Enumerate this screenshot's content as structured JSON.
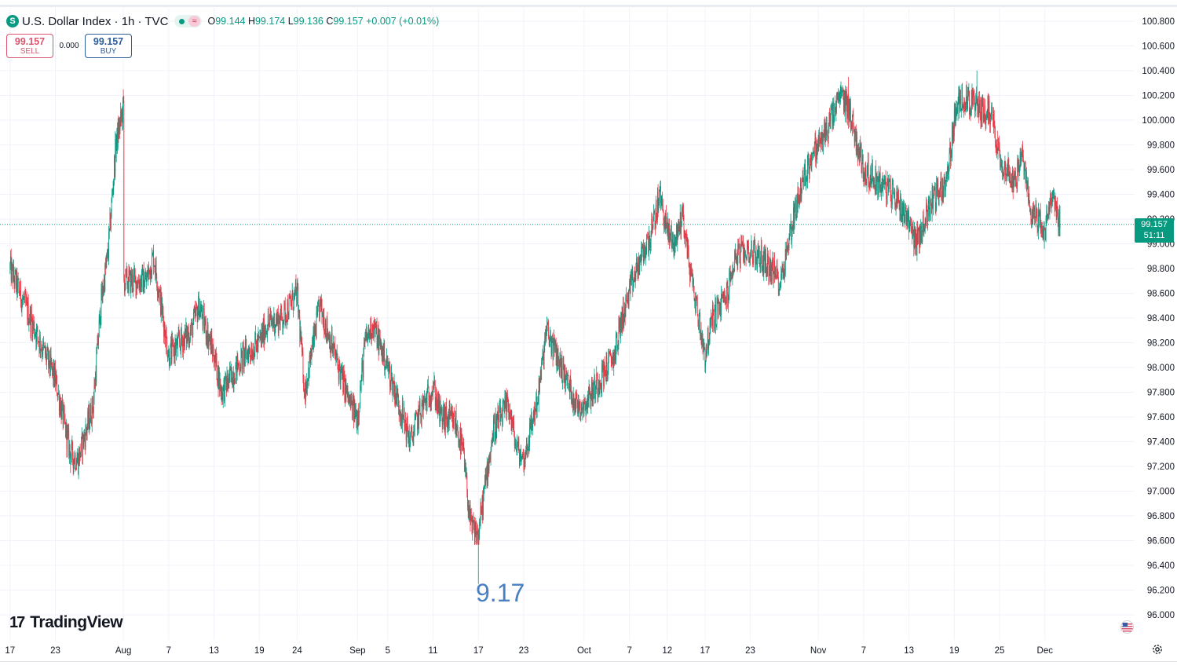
{
  "header": {
    "title": "U.S. Dollar Index · 1h · TVC",
    "logo_letter": "S",
    "ohlc": {
      "o_label": "O",
      "o": "99.144",
      "h_label": "H",
      "h": "99.174",
      "l_label": "L",
      "l": "99.136",
      "c_label": "C",
      "c": "99.157",
      "change": "+0.007 (+0.01%)"
    }
  },
  "trade": {
    "sell_price": "99.157",
    "sell_label": "SELL",
    "spread": "0.000",
    "buy_price": "99.157",
    "buy_label": "BUY"
  },
  "last_price": {
    "price": "99.157",
    "countdown": "51:11"
  },
  "annotation": "9.17",
  "branding": "TradingView",
  "colors": {
    "up": "#089981",
    "down": "#f23645",
    "annotation": "#4a7fc1"
  },
  "icons": {
    "settings": "gear-icon",
    "flag": "us-flag-icon"
  },
  "chart_data": {
    "type": "candlestick",
    "symbol": "U.S. Dollar Index",
    "interval": "1h",
    "ylim": [
      96.0,
      100.8
    ],
    "y_ticks": [
      "100.800",
      "100.600",
      "100.400",
      "100.200",
      "100.000",
      "99.800",
      "99.600",
      "99.400",
      "99.200",
      "99.000",
      "98.800",
      "98.600",
      "98.400",
      "98.200",
      "98.000",
      "97.800",
      "97.600",
      "97.400",
      "97.200",
      "97.000",
      "96.800",
      "96.600",
      "96.400",
      "96.200",
      "96.000"
    ],
    "x_labels": [
      "17",
      "23",
      "Aug",
      "7",
      "13",
      "19",
      "24",
      "Sep",
      "5",
      "11",
      "17",
      "23",
      "Oct",
      "7",
      "12",
      "17",
      "23",
      "Nov",
      "7",
      "13",
      "19",
      "25",
      "Dec"
    ],
    "x_label_dates": [
      "2025-07-17",
      "2025-07-23",
      "2025-08-01",
      "2025-08-07",
      "2025-08-13",
      "2025-08-19",
      "2025-08-24",
      "2025-09-01",
      "2025-09-05",
      "2025-09-11",
      "2025-09-17",
      "2025-09-23",
      "2025-10-01",
      "2025-10-07",
      "2025-10-12",
      "2025-10-17",
      "2025-10-23",
      "2025-11-01",
      "2025-11-07",
      "2025-11-13",
      "2025-11-19",
      "2025-11-25",
      "2025-12-01"
    ],
    "x_range": [
      "2025-07-17",
      "2025-12-03"
    ],
    "close_path": [
      [
        "2025-07-17",
        98.8
      ],
      [
        "2025-07-21",
        98.2
      ],
      [
        "2025-07-23",
        97.9
      ],
      [
        "2025-07-25",
        97.3
      ],
      [
        "2025-07-26",
        97.25
      ],
      [
        "2025-07-28",
        97.7
      ],
      [
        "2025-07-29",
        98.5
      ],
      [
        "2025-07-30",
        98.95
      ],
      [
        "2025-07-31",
        99.8
      ],
      [
        "2025-08-01",
        100.1
      ],
      [
        "2025-08-01",
        98.7
      ],
      [
        "2025-08-04",
        98.7
      ],
      [
        "2025-08-05",
        98.9
      ],
      [
        "2025-08-07",
        98.1
      ],
      [
        "2025-08-10",
        98.3
      ],
      [
        "2025-08-11",
        98.5
      ],
      [
        "2025-08-13",
        98.1
      ],
      [
        "2025-08-14",
        97.8
      ],
      [
        "2025-08-17",
        98.1
      ],
      [
        "2025-08-19",
        98.2
      ],
      [
        "2025-08-20",
        98.35
      ],
      [
        "2025-08-22",
        98.4
      ],
      [
        "2025-08-24",
        98.6
      ],
      [
        "2025-08-25",
        97.8
      ],
      [
        "2025-08-27",
        98.5
      ],
      [
        "2025-08-29",
        98.1
      ],
      [
        "2025-08-31",
        97.7
      ],
      [
        "2025-09-01",
        97.6
      ],
      [
        "2025-09-02",
        98.2
      ],
      [
        "2025-09-03",
        98.35
      ],
      [
        "2025-09-05",
        98.0
      ],
      [
        "2025-09-06",
        97.8
      ],
      [
        "2025-09-08",
        97.4
      ],
      [
        "2025-09-09",
        97.6
      ],
      [
        "2025-09-11",
        97.85
      ],
      [
        "2025-09-12",
        97.6
      ],
      [
        "2025-09-14",
        97.55
      ],
      [
        "2025-09-15",
        97.3
      ],
      [
        "2025-09-16",
        96.7
      ],
      [
        "2025-09-17",
        96.65
      ],
      [
        "2025-09-18",
        97.1
      ],
      [
        "2025-09-19",
        97.5
      ],
      [
        "2025-09-21",
        97.7
      ],
      [
        "2025-09-22",
        97.35
      ],
      [
        "2025-09-23",
        97.25
      ],
      [
        "2025-09-25",
        97.8
      ],
      [
        "2025-09-26",
        98.3
      ],
      [
        "2025-09-28",
        98.0
      ],
      [
        "2025-09-30",
        97.7
      ],
      [
        "2025-10-01",
        97.7
      ],
      [
        "2025-10-02",
        97.8
      ],
      [
        "2025-10-05",
        98.1
      ],
      [
        "2025-10-06",
        98.4
      ],
      [
        "2025-10-08",
        98.8
      ],
      [
        "2025-10-10",
        99.1
      ],
      [
        "2025-10-11",
        99.4
      ],
      [
        "2025-10-12",
        99.1
      ],
      [
        "2025-10-13",
        99.0
      ],
      [
        "2025-10-14",
        99.25
      ],
      [
        "2025-10-15",
        98.8
      ],
      [
        "2025-10-16",
        98.45
      ],
      [
        "2025-10-17",
        98.1
      ],
      [
        "2025-10-18",
        98.4
      ],
      [
        "2025-10-20",
        98.6
      ],
      [
        "2025-10-21",
        98.9
      ],
      [
        "2025-10-23",
        98.95
      ],
      [
        "2025-10-25",
        98.85
      ],
      [
        "2025-10-27",
        98.7
      ],
      [
        "2025-10-29",
        99.3
      ],
      [
        "2025-10-31",
        99.7
      ],
      [
        "2025-11-02",
        99.9
      ],
      [
        "2025-11-04",
        100.2
      ],
      [
        "2025-11-05",
        100.1
      ],
      [
        "2025-11-07",
        99.6
      ],
      [
        "2025-11-09",
        99.5
      ],
      [
        "2025-11-11",
        99.4
      ],
      [
        "2025-11-13",
        99.2
      ],
      [
        "2025-11-14",
        99.0
      ],
      [
        "2025-11-16",
        99.35
      ],
      [
        "2025-11-18",
        99.5
      ],
      [
        "2025-11-19",
        100.0
      ],
      [
        "2025-11-20",
        100.2
      ],
      [
        "2025-11-22",
        100.1
      ],
      [
        "2025-11-24",
        100.05
      ],
      [
        "2025-11-25",
        99.7
      ],
      [
        "2025-11-27",
        99.5
      ],
      [
        "2025-11-28",
        99.7
      ],
      [
        "2025-11-29",
        99.3
      ],
      [
        "2025-12-01",
        99.1
      ],
      [
        "2025-12-02",
        99.4
      ],
      [
        "2025-12-03",
        99.157
      ]
    ],
    "notable_extremes": [
      {
        "date": "2025-08-01",
        "high": 100.25
      },
      {
        "date": "2025-09-17",
        "low": 96.25
      },
      {
        "date": "2025-11-05",
        "high": 100.35
      },
      {
        "date": "2025-11-22",
        "high": 100.4
      }
    ],
    "last_price": 99.157,
    "grid": true
  }
}
